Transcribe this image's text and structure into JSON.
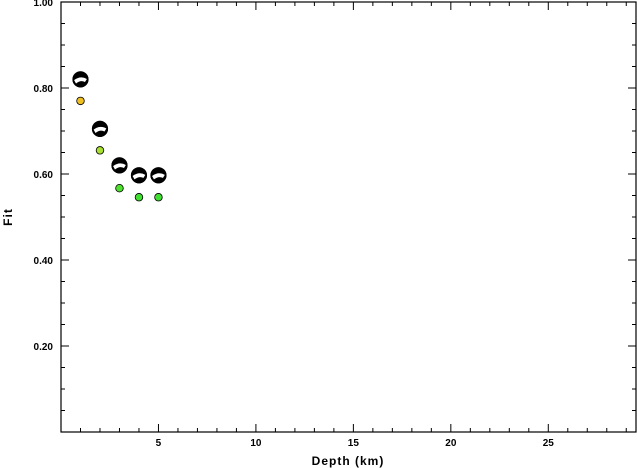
{
  "chart_data": {
    "type": "scatter",
    "xlabel": "Depth (km)",
    "ylabel": "Fit",
    "xlim": [
      0,
      29.5
    ],
    "ylim": [
      0.0,
      1.0
    ],
    "x_ticks": [
      5,
      10,
      15,
      20,
      25
    ],
    "y_ticks": [
      0.2,
      0.4,
      0.6,
      0.8,
      1.0
    ],
    "x_tick_labels": [
      "5",
      "10",
      "15",
      "20",
      "25"
    ],
    "y_tick_labels": [
      "0.20",
      "0.40",
      "0.60",
      "0.80",
      "1.00"
    ],
    "x_minor_step": 1,
    "y_minor_step": 0.05,
    "grid": false,
    "series": [
      {
        "marker": "focal-mechanism",
        "color": "#000000",
        "x": [
          1,
          2,
          3,
          4,
          5
        ],
        "y": [
          0.82,
          0.705,
          0.62,
          0.597,
          0.597
        ]
      },
      {
        "marker": "circle",
        "x": [
          1,
          2,
          3,
          4,
          5
        ],
        "y": [
          0.77,
          0.655,
          0.567,
          0.546,
          0.546
        ],
        "colors": [
          "#f0c020",
          "#a8e030",
          "#50e030",
          "#40e030",
          "#40e030"
        ]
      }
    ]
  }
}
